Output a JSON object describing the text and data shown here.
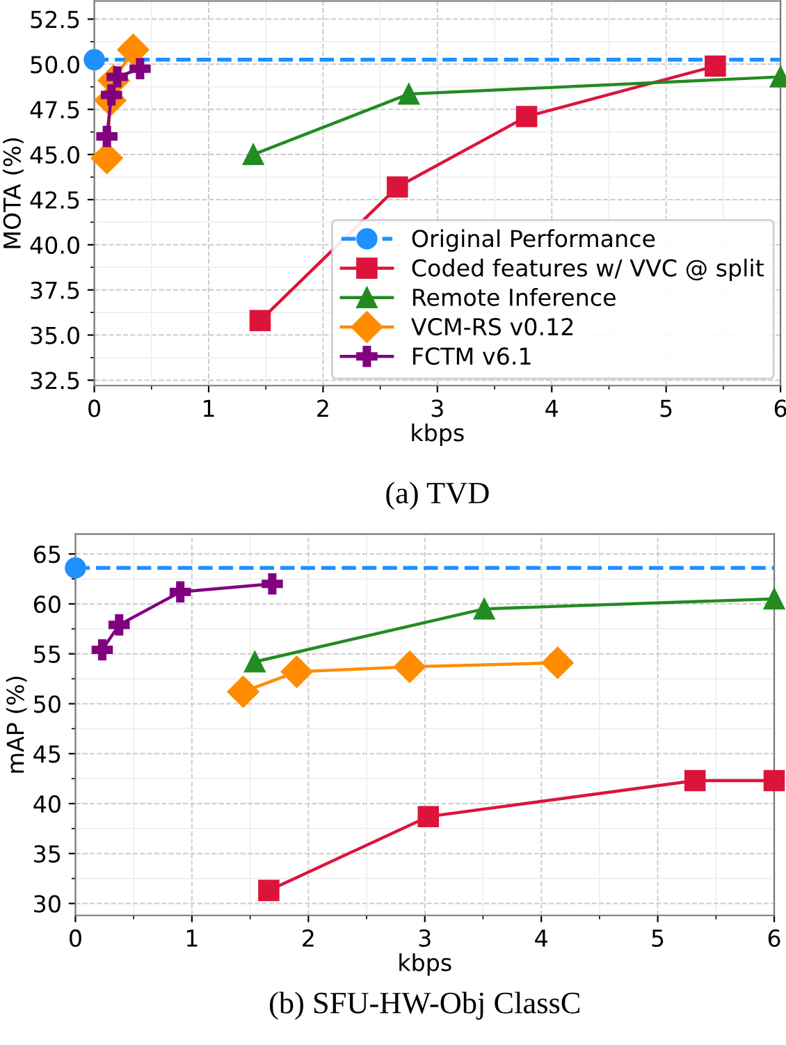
{
  "chart_data": [
    {
      "type": "line",
      "title": "(a) TVD",
      "xlabel": "kbps",
      "ylabel": "MOTA (%)",
      "xlim": [
        0,
        6
      ],
      "xticks": [
        0,
        1,
        2,
        3,
        4,
        5,
        6
      ],
      "ylim": [
        32.2,
        53.5
      ],
      "yticks": [
        {
          "value": 32.5,
          "label": "32.5"
        },
        {
          "value": 35,
          "label": "35.0"
        },
        {
          "value": 37.5,
          "label": "37.5"
        },
        {
          "value": 40,
          "label": "40.0"
        },
        {
          "value": 42.5,
          "label": "42.5"
        },
        {
          "value": 45,
          "label": "45.0"
        },
        {
          "value": 47.5,
          "label": "47.5"
        },
        {
          "value": 50,
          "label": "50.0"
        },
        {
          "value": 52.5,
          "label": "52.5"
        }
      ],
      "grid": true,
      "legend": "bottom right",
      "series": [
        {
          "name": "Original Performance",
          "color": "#1e90ff",
          "marker": "circle",
          "line_style": "dashed",
          "x": [
            0,
            6
          ],
          "values": [
            50.25,
            50.25
          ]
        },
        {
          "name": "Coded features w/ VVC @ split",
          "color": "#dc143c",
          "marker": "square",
          "x": [
            1.45,
            2.65,
            3.78,
            5.43
          ],
          "values": [
            35.8,
            43.2,
            47.1,
            49.9
          ]
        },
        {
          "name": "Remote Inference",
          "color": "#228b22",
          "marker": "triangle",
          "x": [
            1.39,
            2.75,
            6
          ],
          "values": [
            45.0,
            48.35,
            49.3
          ]
        },
        {
          "name": "VCM-RS v0.12",
          "color": "#ff8c00",
          "marker": "diamond",
          "x": [
            0.11,
            0.14,
            0.17,
            0.34
          ],
          "values": [
            44.8,
            48.0,
            49.1,
            50.8
          ]
        },
        {
          "name": "FCTM v6.1",
          "color": "#800080",
          "marker": "cross",
          "x": [
            0.11,
            0.15,
            0.2,
            0.4
          ],
          "values": [
            46.0,
            48.3,
            49.3,
            49.75
          ]
        }
      ]
    },
    {
      "type": "line",
      "title": "(b) SFU-HW-Obj ClassC",
      "xlabel": "kbps",
      "ylabel": "mAP (%)",
      "xlim": [
        0,
        6
      ],
      "xticks": [
        0,
        1,
        2,
        3,
        4,
        5,
        6
      ],
      "ylim": [
        28.8,
        67
      ],
      "yticks": [
        30,
        35,
        40,
        45,
        50,
        55,
        60,
        65
      ],
      "grid": true,
      "series": [
        {
          "color": "#1e90ff",
          "marker": "circle",
          "line_style": "dashed",
          "x": [
            0,
            6
          ],
          "values": [
            63.6,
            63.6
          ]
        },
        {
          "color": "#dc143c",
          "marker": "square",
          "x": [
            1.66,
            3.03,
            5.32,
            6
          ],
          "values": [
            31.3,
            38.7,
            42.3,
            42.3
          ]
        },
        {
          "color": "#228b22",
          "marker": "triangle",
          "x": [
            1.54,
            3.51,
            6
          ],
          "values": [
            54.2,
            59.5,
            60.5
          ]
        },
        {
          "color": "#ff8c00",
          "marker": "diamond",
          "x": [
            1.44,
            1.9,
            2.87,
            4.14
          ],
          "values": [
            51.2,
            53.2,
            53.7,
            54.1
          ]
        },
        {
          "color": "#800080",
          "marker": "cross",
          "x": [
            0.23,
            0.375,
            0.9,
            1.69
          ],
          "values": [
            55.4,
            57.9,
            61.2,
            62.0
          ]
        }
      ]
    }
  ]
}
